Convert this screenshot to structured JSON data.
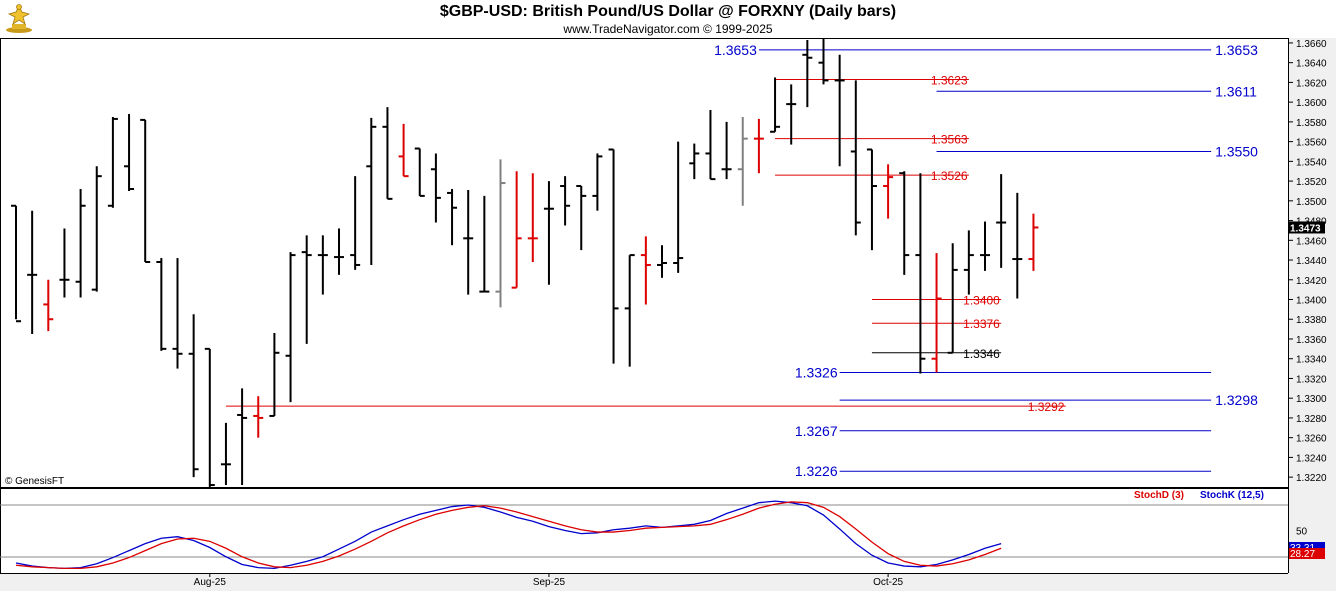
{
  "header": {
    "title": "$GBP-USD:  British Pound/US Dollar @ FORXNY  (Daily bars)",
    "subtitle": "www.TradeNavigator.com © 1999-2025",
    "logo_icon": "trophy-figure-icon"
  },
  "colors": {
    "up_bar": "#000000",
    "red_bar": "#dd0000",
    "gray_bar": "#808080",
    "blue_level": "#0000cc",
    "red_level": "#dd0000",
    "stoch_d": "#dd0000",
    "stoch_k": "#0000cc",
    "last_price_box": "#000000"
  },
  "chart_data": [
    {
      "type": "ohlc",
      "title": "$GBP-USD:  British Pound/US Dollar @ FORXNY  (Daily bars)",
      "copyright": "© GenesisFT",
      "ylim": [
        1.321,
        1.3665
      ],
      "y_ticks": [
        "1.3220",
        "1.3240",
        "1.3260",
        "1.3280",
        "1.3300",
        "1.3320",
        "1.3340",
        "1.3360",
        "1.3380",
        "1.3400",
        "1.3420",
        "1.3440",
        "1.3460",
        "1.3480",
        "1.3500",
        "1.3520",
        "1.3540",
        "1.3560",
        "1.3580",
        "1.3600",
        "1.3620",
        "1.3640",
        "1.3660"
      ],
      "last_price": "1.3473",
      "x_labels": [
        {
          "label": "Aug-25",
          "bar": 12
        },
        {
          "label": "Sep-25",
          "bar": 33
        },
        {
          "label": "Oct-25",
          "bar": 54
        }
      ],
      "bars": [
        {
          "o": 1.3495,
          "h": 1.3495,
          "l": 1.338,
          "c": 1.3378,
          "color": "black"
        },
        {
          "o": 1.3425,
          "h": 1.349,
          "l": 1.3365,
          "c": 1.3425,
          "color": "black"
        },
        {
          "o": 1.3395,
          "h": 1.342,
          "l": 1.3368,
          "c": 1.338,
          "color": "red"
        },
        {
          "o": 1.342,
          "h": 1.3472,
          "l": 1.3402,
          "c": 1.342,
          "color": "black"
        },
        {
          "o": 1.3418,
          "h": 1.3512,
          "l": 1.3402,
          "c": 1.3495,
          "color": "black"
        },
        {
          "o": 1.341,
          "h": 1.3535,
          "l": 1.3408,
          "c": 1.3525,
          "color": "black"
        },
        {
          "o": 1.3495,
          "h": 1.3585,
          "l": 1.3493,
          "c": 1.3583,
          "color": "black"
        },
        {
          "o": 1.3535,
          "h": 1.3588,
          "l": 1.351,
          "c": 1.3512,
          "color": "black"
        },
        {
          "o": 1.3582,
          "h": 1.3582,
          "l": 1.3438,
          "c": 1.3438,
          "color": "black"
        },
        {
          "o": 1.3438,
          "h": 1.3442,
          "l": 1.3348,
          "c": 1.335,
          "color": "black"
        },
        {
          "o": 1.335,
          "h": 1.3442,
          "l": 1.333,
          "c": 1.3345,
          "color": "black"
        },
        {
          "o": 1.3345,
          "h": 1.3385,
          "l": 1.322,
          "c": 1.3228,
          "color": "black"
        },
        {
          "o": 1.335,
          "h": 1.335,
          "l": 1.321,
          "c": 1.3212,
          "color": "black"
        },
        {
          "o": 1.3233,
          "h": 1.3275,
          "l": 1.3212,
          "c": 1.3233,
          "color": "black"
        },
        {
          "o": 1.3283,
          "h": 1.331,
          "l": 1.3212,
          "c": 1.328,
          "color": "black"
        },
        {
          "o": 1.3282,
          "h": 1.3302,
          "l": 1.326,
          "c": 1.328,
          "color": "red"
        },
        {
          "o": 1.3282,
          "h": 1.3366,
          "l": 1.3282,
          "c": 1.3346,
          "color": "black"
        },
        {
          "o": 1.3343,
          "h": 1.3448,
          "l": 1.3296,
          "c": 1.3445,
          "color": "black"
        },
        {
          "o": 1.3448,
          "h": 1.3465,
          "l": 1.3355,
          "c": 1.3445,
          "color": "black"
        },
        {
          "o": 1.3445,
          "h": 1.3465,
          "l": 1.3405,
          "c": 1.3445,
          "color": "black"
        },
        {
          "o": 1.3443,
          "h": 1.3472,
          "l": 1.3425,
          "c": 1.3443,
          "color": "black"
        },
        {
          "o": 1.3445,
          "h": 1.3525,
          "l": 1.343,
          "c": 1.3435,
          "color": "black"
        },
        {
          "o": 1.3535,
          "h": 1.3584,
          "l": 1.3435,
          "c": 1.3575,
          "color": "black"
        },
        {
          "o": 1.3575,
          "h": 1.3595,
          "l": 1.3502,
          "c": 1.3502,
          "color": "black"
        },
        {
          "o": 1.3545,
          "h": 1.3578,
          "l": 1.3525,
          "c": 1.3525,
          "color": "red"
        },
        {
          "o": 1.3553,
          "h": 1.3553,
          "l": 1.3505,
          "c": 1.3505,
          "color": "black"
        },
        {
          "o": 1.3532,
          "h": 1.3548,
          "l": 1.3478,
          "c": 1.3503,
          "color": "black"
        },
        {
          "o": 1.3508,
          "h": 1.3512,
          "l": 1.3455,
          "c": 1.3493,
          "color": "black"
        },
        {
          "o": 1.3462,
          "h": 1.3511,
          "l": 1.3405,
          "c": 1.3462,
          "color": "black"
        },
        {
          "o": 1.3408,
          "h": 1.3505,
          "l": 1.3408,
          "c": 1.3408,
          "color": "black"
        },
        {
          "o": 1.3408,
          "h": 1.3542,
          "l": 1.3392,
          "c": 1.3518,
          "color": "gray"
        },
        {
          "o": 1.3412,
          "h": 1.353,
          "l": 1.3412,
          "c": 1.3462,
          "color": "red"
        },
        {
          "o": 1.3462,
          "h": 1.3528,
          "l": 1.3438,
          "c": 1.3462,
          "color": "red"
        },
        {
          "o": 1.3492,
          "h": 1.352,
          "l": 1.3415,
          "c": 1.3492,
          "color": "black"
        },
        {
          "o": 1.3515,
          "h": 1.3525,
          "l": 1.3475,
          "c": 1.3495,
          "color": "black"
        },
        {
          "o": 1.3515,
          "h": 1.3515,
          "l": 1.345,
          "c": 1.3505,
          "color": "black"
        },
        {
          "o": 1.3505,
          "h": 1.3548,
          "l": 1.349,
          "c": 1.3545,
          "color": "black"
        },
        {
          "o": 1.3552,
          "h": 1.3552,
          "l": 1.3335,
          "c": 1.3391,
          "color": "black"
        },
        {
          "o": 1.3391,
          "h": 1.3445,
          "l": 1.3332,
          "c": 1.3445,
          "color": "black"
        },
        {
          "o": 1.3445,
          "h": 1.3464,
          "l": 1.3395,
          "c": 1.3435,
          "color": "red"
        },
        {
          "o": 1.3435,
          "h": 1.3455,
          "l": 1.3422,
          "c": 1.3437,
          "color": "black"
        },
        {
          "o": 1.3437,
          "h": 1.356,
          "l": 1.3427,
          "c": 1.3442,
          "color": "black"
        },
        {
          "o": 1.3538,
          "h": 1.3558,
          "l": 1.3522,
          "c": 1.3548,
          "color": "black"
        },
        {
          "o": 1.3548,
          "h": 1.3592,
          "l": 1.3522,
          "c": 1.3522,
          "color": "black"
        },
        {
          "o": 1.3532,
          "h": 1.358,
          "l": 1.3522,
          "c": 1.3532,
          "color": "black"
        },
        {
          "o": 1.3532,
          "h": 1.3585,
          "l": 1.3495,
          "c": 1.3563,
          "color": "gray"
        },
        {
          "o": 1.3563,
          "h": 1.3583,
          "l": 1.3528,
          "c": 1.3563,
          "color": "red"
        },
        {
          "o": 1.357,
          "h": 1.3625,
          "l": 1.357,
          "c": 1.3575,
          "color": "black"
        },
        {
          "o": 1.3598,
          "h": 1.3618,
          "l": 1.3557,
          "c": 1.3598,
          "color": "black"
        },
        {
          "o": 1.3648,
          "h": 1.3663,
          "l": 1.3595,
          "c": 1.3645,
          "color": "black"
        },
        {
          "o": 1.364,
          "h": 1.3673,
          "l": 1.3618,
          "c": 1.3622,
          "color": "black"
        },
        {
          "o": 1.3622,
          "h": 1.3648,
          "l": 1.3535,
          "c": 1.3622,
          "color": "black"
        },
        {
          "o": 1.355,
          "h": 1.3622,
          "l": 1.3465,
          "c": 1.3478,
          "color": "black"
        },
        {
          "o": 1.3552,
          "h": 1.3552,
          "l": 1.345,
          "c": 1.3515,
          "color": "black"
        },
        {
          "o": 1.3515,
          "h": 1.3537,
          "l": 1.3482,
          "c": 1.3524,
          "color": "red"
        },
        {
          "o": 1.3528,
          "h": 1.353,
          "l": 1.3425,
          "c": 1.3445,
          "color": "black"
        },
        {
          "o": 1.3445,
          "h": 1.3528,
          "l": 1.3325,
          "c": 1.334,
          "color": "black"
        },
        {
          "o": 1.334,
          "h": 1.3447,
          "l": 1.3326,
          "c": 1.3401,
          "color": "red"
        },
        {
          "o": 1.3346,
          "h": 1.3457,
          "l": 1.3346,
          "c": 1.343,
          "color": "black"
        },
        {
          "o": 1.343,
          "h": 1.347,
          "l": 1.3405,
          "c": 1.3445,
          "color": "black"
        },
        {
          "o": 1.3445,
          "h": 1.3479,
          "l": 1.3429,
          "c": 1.3445,
          "color": "black"
        },
        {
          "o": 1.3478,
          "h": 1.3527,
          "l": 1.3432,
          "c": 1.3478,
          "color": "black"
        },
        {
          "o": 1.3441,
          "h": 1.3508,
          "l": 1.3401,
          "c": 1.3441,
          "color": "black"
        },
        {
          "o": 1.3441,
          "h": 1.3487,
          "l": 1.3429,
          "c": 1.3473,
          "color": "red"
        }
      ],
      "levels": [
        {
          "value": "1.3653",
          "color": "blue",
          "x0": 46,
          "x1": 74,
          "label_side": "both"
        },
        {
          "value": "1.3623",
          "color": "red",
          "x0": 47,
          "x1": 59,
          "label_side": "right-inner"
        },
        {
          "value": "1.3611",
          "color": "blue",
          "x0": 57,
          "x1": 74,
          "label_side": "right"
        },
        {
          "value": "1.3563",
          "color": "red",
          "x0": 47,
          "x1": 59,
          "label_side": "right-inner"
        },
        {
          "value": "1.3550",
          "color": "blue",
          "x0": 57,
          "x1": 74,
          "label_side": "right"
        },
        {
          "value": "1.3526",
          "color": "red",
          "x0": 47,
          "x1": 59,
          "label_side": "right-inner"
        },
        {
          "value": "1.3400",
          "color": "red",
          "x0": 53,
          "x1": 61,
          "label_side": "right-inner"
        },
        {
          "value": "1.3376",
          "color": "red",
          "x0": 53,
          "x1": 61,
          "label_side": "right-inner"
        },
        {
          "value": "1.3346",
          "color": "black",
          "x0": 53,
          "x1": 61,
          "label_side": "right-inner"
        },
        {
          "value": "1.3326",
          "color": "blue",
          "x0": 51,
          "x1": 74,
          "label_side": "left"
        },
        {
          "value": "1.3298",
          "color": "blue",
          "x0": 51,
          "x1": 74,
          "label_side": "right"
        },
        {
          "value": "1.3292",
          "color": "red",
          "x0": 13,
          "x1": 65,
          "label_side": "right-inner"
        },
        {
          "value": "1.3267",
          "color": "blue",
          "x0": 51,
          "x1": 74,
          "label_side": "left"
        },
        {
          "value": "1.3226",
          "color": "blue",
          "x0": 51,
          "x1": 74,
          "label_side": "left"
        }
      ]
    },
    {
      "type": "line",
      "legend": [
        "StochD (3)",
        "StochK (12,5)"
      ],
      "ylim": [
        -5,
        105
      ],
      "y_ticks": [
        "50"
      ],
      "last_k": "33.31",
      "last_d": "28.27",
      "series": [
        {
          "name": "StochK (12,5)",
          "color": "blue",
          "values": [
            8,
            4,
            2,
            1,
            2,
            7,
            15,
            24,
            33,
            40,
            42,
            37,
            28,
            16,
            6,
            2,
            1,
            5,
            10,
            16,
            26,
            36,
            48,
            56,
            64,
            71,
            76,
            81,
            83,
            80,
            74,
            67,
            62,
            55,
            50,
            46,
            47,
            51,
            53,
            56,
            54,
            56,
            58,
            63,
            72,
            79,
            86,
            88,
            86,
            82,
            70,
            52,
            33,
            18,
            8,
            4,
            3,
            6,
            12,
            19,
            27,
            33
          ]
        },
        {
          "name": "StochD (3)",
          "color": "red",
          "values": [
            5,
            3,
            2,
            1,
            1,
            3,
            8,
            15,
            24,
            33,
            39,
            40,
            36,
            27,
            16,
            8,
            3,
            2,
            5,
            10,
            17,
            26,
            36,
            47,
            56,
            64,
            71,
            76,
            80,
            82,
            79,
            74,
            68,
            62,
            56,
            51,
            48,
            48,
            50,
            53,
            54,
            55,
            56,
            58,
            64,
            71,
            79,
            84,
            87,
            86,
            80,
            68,
            52,
            35,
            20,
            10,
            5,
            4,
            7,
            12,
            19,
            27
          ]
        }
      ]
    }
  ]
}
